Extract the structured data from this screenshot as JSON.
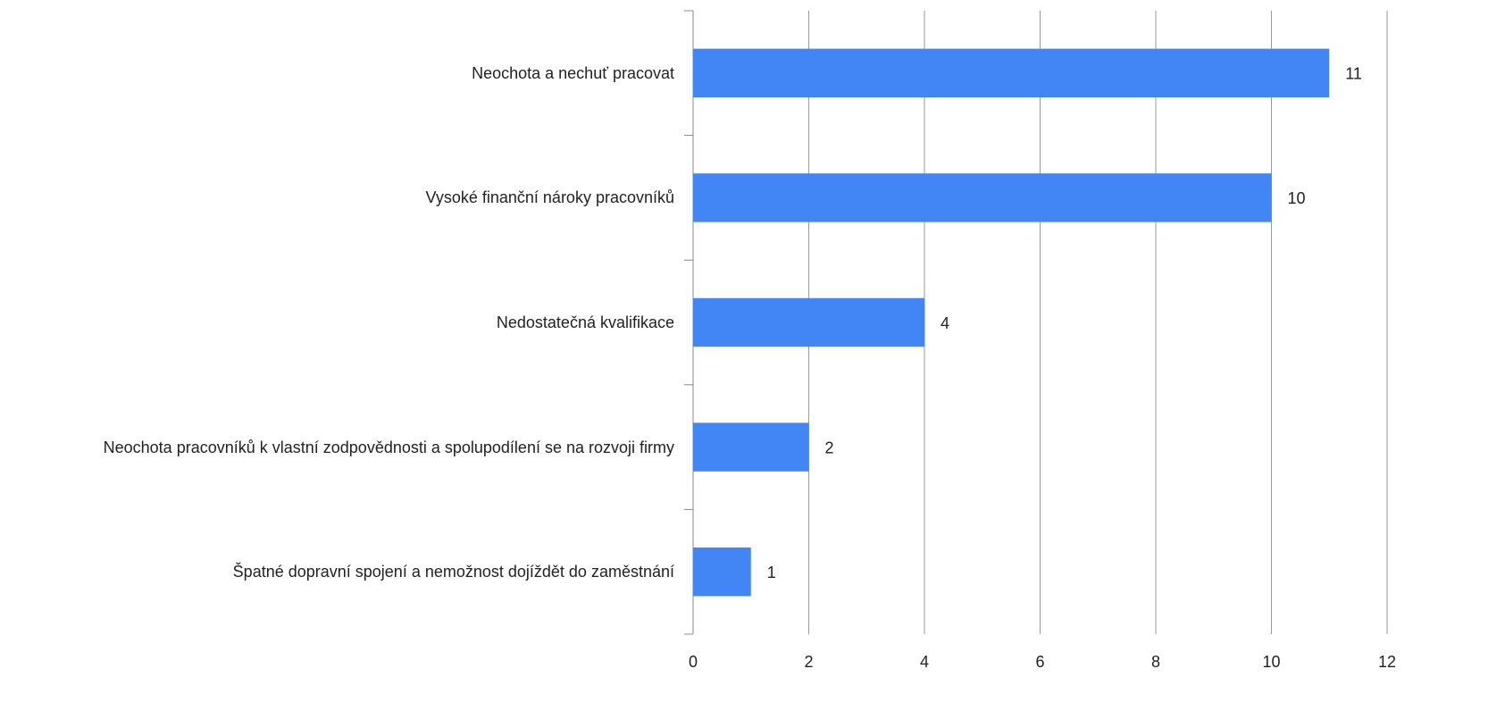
{
  "chart_data": {
    "type": "bar",
    "orientation": "horizontal",
    "categories": [
      "Neochota a nechuť pracovat",
      "Vysoké finanční nároky pracovníků",
      "Nedostatečná kvalifikace",
      "Neochota pracovníků k vlastní zodpovědnosti a spolupodílení se na rozvoji firmy",
      "Špatné dopravní spojení a nemožnost dojíždět do zaměstnání"
    ],
    "values": [
      11,
      10,
      4,
      2,
      1
    ],
    "color": "#4285f4",
    "xlim": [
      0,
      12
    ],
    "xticks": [
      0,
      2,
      4,
      6,
      8,
      10,
      12
    ],
    "grid": true
  }
}
